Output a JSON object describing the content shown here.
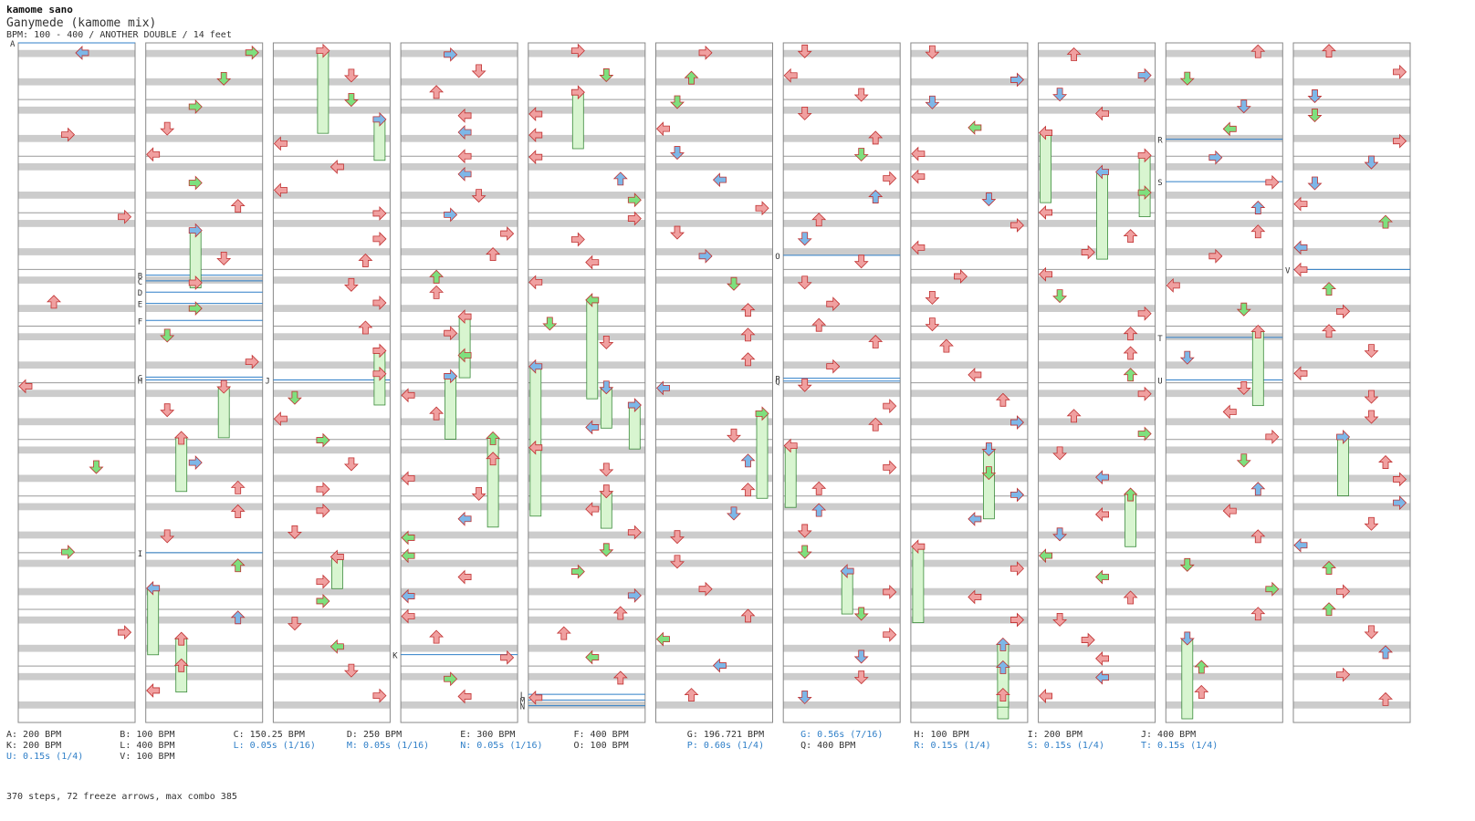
{
  "header": {
    "artist": "kamome sano",
    "title": "Ganymede (kamome mix)",
    "info": "BPM: 100 - 400 / ANOTHER DOUBLE / 14 feet"
  },
  "colors": {
    "tap": "#f0a0a0",
    "tap_alt": "#7db7e8",
    "tap_green": "#7ee07e",
    "freeze": "#d8f5d0",
    "stripe": "#cccccc",
    "marker_line": "#2f7fc8"
  },
  "legend": [
    {
      "text": "A: 200 BPM",
      "blue": false
    },
    {
      "text": "B: 100 BPM",
      "blue": false
    },
    {
      "text": "C: 150.25 BPM",
      "blue": false
    },
    {
      "text": "D: 250 BPM",
      "blue": false
    },
    {
      "text": "E: 300 BPM",
      "blue": false
    },
    {
      "text": "F: 400 BPM",
      "blue": false
    },
    {
      "text": "G: 196.721 BPM",
      "blue": false
    },
    {
      "text": "G: 0.56s (7/16)",
      "blue": true
    },
    {
      "text": "H: 100 BPM",
      "blue": false
    },
    {
      "text": "I: 200 BPM",
      "blue": false
    },
    {
      "text": "J: 400 BPM",
      "blue": false
    },
    {
      "text": "K: 200 BPM",
      "blue": false
    },
    {
      "text": "L: 400 BPM",
      "blue": false
    },
    {
      "text": "L: 0.05s (1/16)",
      "blue": true
    },
    {
      "text": "M: 0.05s (1/16)",
      "blue": true
    },
    {
      "text": "N: 0.05s (1/16)",
      "blue": true
    },
    {
      "text": "O: 100 BPM",
      "blue": false
    },
    {
      "text": "P: 0.60s (1/4)",
      "blue": true
    },
    {
      "text": "Q: 400 BPM",
      "blue": false
    },
    {
      "text": "R: 0.15s (1/4)",
      "blue": true
    },
    {
      "text": "S: 0.15s (1/4)",
      "blue": true
    },
    {
      "text": "T: 0.15s (1/4)",
      "blue": true
    },
    {
      "text": "U: 0.15s (1/4)",
      "blue": true
    },
    {
      "text": "V: 100 BPM",
      "blue": false
    }
  ],
  "summary": "370 steps, 72 freeze arrows, max combo 385",
  "columns": 11,
  "markers": [
    {
      "label": "A",
      "col": 0,
      "pos": 0.0
    },
    {
      "label": "B",
      "col": 1,
      "pos": 4.1
    },
    {
      "label": "C",
      "col": 1,
      "pos": 4.2
    },
    {
      "label": "D",
      "col": 1,
      "pos": 4.4
    },
    {
      "label": "E",
      "col": 1,
      "pos": 4.6
    },
    {
      "label": "F",
      "col": 1,
      "pos": 4.9
    },
    {
      "label": "G",
      "col": 1,
      "pos": 5.9
    },
    {
      "label": "H",
      "col": 1,
      "pos": 5.95
    },
    {
      "label": "I",
      "col": 1,
      "pos": 9.0
    },
    {
      "label": "J",
      "col": 2,
      "pos": 5.95
    },
    {
      "label": "K",
      "col": 3,
      "pos": 10.8
    },
    {
      "label": "L",
      "col": 4,
      "pos": 11.5
    },
    {
      "label": "M",
      "col": 4,
      "pos": 11.6
    },
    {
      "label": "N",
      "col": 4,
      "pos": 11.7
    },
    {
      "label": "O",
      "col": 6,
      "pos": 3.75
    },
    {
      "label": "P",
      "col": 6,
      "pos": 5.92
    },
    {
      "label": "Q",
      "col": 6,
      "pos": 5.97
    },
    {
      "label": "R",
      "col": 9,
      "pos": 1.7
    },
    {
      "label": "S",
      "col": 9,
      "pos": 2.45
    },
    {
      "label": "T",
      "col": 9,
      "pos": 5.2
    },
    {
      "label": "U",
      "col": 9,
      "pos": 5.95
    },
    {
      "label": "V",
      "col": 10,
      "pos": 4.0
    }
  ]
}
